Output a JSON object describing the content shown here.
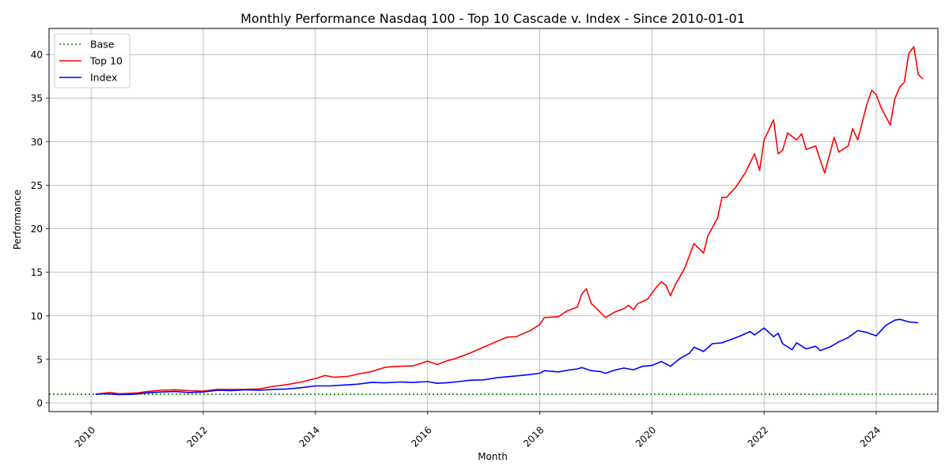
{
  "chart_data": {
    "type": "line",
    "title": "Monthly Performance Nasdaq 100 - Top 10 Cascade v. Index - Since 2010-01-01",
    "xlabel": "Month",
    "ylabel": "Performance",
    "xlim": [
      2009.25,
      2025.1
    ],
    "ylim": [
      -1,
      43
    ],
    "x_ticks": [
      "2010",
      "2012",
      "2014",
      "2016",
      "2018",
      "2020",
      "2022",
      "2024"
    ],
    "x_tick_values": [
      2010,
      2012,
      2014,
      2016,
      2018,
      2020,
      2022,
      2024
    ],
    "y_ticks": [
      0,
      5,
      10,
      15,
      20,
      25,
      30,
      35,
      40
    ],
    "grid": true,
    "legend_position": "top-left",
    "base": {
      "name": "Base",
      "value": 1,
      "color": "#008000",
      "style": "dotted"
    },
    "series": [
      {
        "name": "Top 10",
        "color": "#ff0000",
        "points": [
          [
            2010.08,
            1.0
          ],
          [
            2010.25,
            1.12
          ],
          [
            2010.33,
            1.2
          ],
          [
            2010.5,
            1.05
          ],
          [
            2010.67,
            1.1
          ],
          [
            2010.83,
            1.15
          ],
          [
            2011.0,
            1.3
          ],
          [
            2011.25,
            1.45
          ],
          [
            2011.5,
            1.5
          ],
          [
            2011.75,
            1.4
          ],
          [
            2012.0,
            1.35
          ],
          [
            2012.25,
            1.55
          ],
          [
            2012.5,
            1.55
          ],
          [
            2012.75,
            1.55
          ],
          [
            2013.0,
            1.6
          ],
          [
            2013.25,
            1.9
          ],
          [
            2013.5,
            2.1
          ],
          [
            2013.75,
            2.4
          ],
          [
            2014.0,
            2.8
          ],
          [
            2014.17,
            3.15
          ],
          [
            2014.33,
            2.95
          ],
          [
            2014.58,
            3.05
          ],
          [
            2014.75,
            3.3
          ],
          [
            2015.0,
            3.6
          ],
          [
            2015.25,
            4.1
          ],
          [
            2015.5,
            4.2
          ],
          [
            2015.75,
            4.25
          ],
          [
            2016.0,
            4.8
          ],
          [
            2016.17,
            4.4
          ],
          [
            2016.33,
            4.8
          ],
          [
            2016.5,
            5.1
          ],
          [
            2016.75,
            5.7
          ],
          [
            2017.0,
            6.4
          ],
          [
            2017.25,
            7.1
          ],
          [
            2017.42,
            7.55
          ],
          [
            2017.58,
            7.6
          ],
          [
            2017.83,
            8.3
          ],
          [
            2018.0,
            9.0
          ],
          [
            2018.08,
            9.8
          ],
          [
            2018.33,
            9.9
          ],
          [
            2018.5,
            10.6
          ],
          [
            2018.67,
            11.0
          ],
          [
            2018.75,
            12.5
          ],
          [
            2018.83,
            13.1
          ],
          [
            2018.92,
            11.4
          ],
          [
            2019.08,
            10.4
          ],
          [
            2019.17,
            9.8
          ],
          [
            2019.33,
            10.4
          ],
          [
            2019.5,
            10.8
          ],
          [
            2019.58,
            11.2
          ],
          [
            2019.67,
            10.7
          ],
          [
            2019.75,
            11.4
          ],
          [
            2019.92,
            11.9
          ],
          [
            2020.08,
            13.3
          ],
          [
            2020.17,
            13.9
          ],
          [
            2020.25,
            13.5
          ],
          [
            2020.33,
            12.3
          ],
          [
            2020.42,
            13.6
          ],
          [
            2020.58,
            15.4
          ],
          [
            2020.75,
            18.3
          ],
          [
            2020.92,
            17.2
          ],
          [
            2021.0,
            19.2
          ],
          [
            2021.17,
            21.2
          ],
          [
            2021.25,
            23.6
          ],
          [
            2021.33,
            23.6
          ],
          [
            2021.5,
            24.8
          ],
          [
            2021.67,
            26.5
          ],
          [
            2021.83,
            28.6
          ],
          [
            2021.92,
            26.7
          ],
          [
            2022.0,
            30.2
          ],
          [
            2022.17,
            32.5
          ],
          [
            2022.25,
            28.6
          ],
          [
            2022.33,
            29.0
          ],
          [
            2022.42,
            31.0
          ],
          [
            2022.58,
            30.2
          ],
          [
            2022.67,
            30.9
          ],
          [
            2022.75,
            29.1
          ],
          [
            2022.92,
            29.5
          ],
          [
            2023.0,
            27.9
          ],
          [
            2023.08,
            26.4
          ],
          [
            2023.25,
            30.5
          ],
          [
            2023.33,
            28.8
          ],
          [
            2023.5,
            29.5
          ],
          [
            2023.58,
            31.5
          ],
          [
            2023.67,
            30.2
          ],
          [
            2023.83,
            34.2
          ],
          [
            2023.92,
            35.9
          ],
          [
            2024.0,
            35.4
          ],
          [
            2024.08,
            34.0
          ],
          [
            2024.25,
            31.9
          ],
          [
            2024.33,
            34.9
          ],
          [
            2024.42,
            36.3
          ],
          [
            2024.5,
            36.8
          ],
          [
            2024.58,
            40.1
          ],
          [
            2024.67,
            40.9
          ],
          [
            2024.75,
            37.7
          ],
          [
            2024.83,
            37.2
          ]
        ]
      },
      {
        "name": "Index",
        "color": "#0000ff",
        "points": [
          [
            2010.08,
            1.0
          ],
          [
            2010.25,
            1.05
          ],
          [
            2010.5,
            0.95
          ],
          [
            2010.75,
            0.98
          ],
          [
            2011.0,
            1.15
          ],
          [
            2011.25,
            1.25
          ],
          [
            2011.5,
            1.3
          ],
          [
            2011.75,
            1.2
          ],
          [
            2012.0,
            1.25
          ],
          [
            2012.25,
            1.45
          ],
          [
            2012.5,
            1.4
          ],
          [
            2012.75,
            1.5
          ],
          [
            2013.0,
            1.45
          ],
          [
            2013.25,
            1.55
          ],
          [
            2013.5,
            1.6
          ],
          [
            2013.75,
            1.75
          ],
          [
            2014.0,
            1.95
          ],
          [
            2014.25,
            1.95
          ],
          [
            2014.5,
            2.05
          ],
          [
            2014.75,
            2.15
          ],
          [
            2015.0,
            2.35
          ],
          [
            2015.25,
            2.3
          ],
          [
            2015.5,
            2.4
          ],
          [
            2015.75,
            2.35
          ],
          [
            2016.0,
            2.45
          ],
          [
            2016.17,
            2.25
          ],
          [
            2016.33,
            2.3
          ],
          [
            2016.5,
            2.4
          ],
          [
            2016.75,
            2.6
          ],
          [
            2017.0,
            2.65
          ],
          [
            2017.25,
            2.9
          ],
          [
            2017.5,
            3.05
          ],
          [
            2017.75,
            3.2
          ],
          [
            2018.0,
            3.4
          ],
          [
            2018.08,
            3.7
          ],
          [
            2018.33,
            3.55
          ],
          [
            2018.5,
            3.75
          ],
          [
            2018.67,
            3.9
          ],
          [
            2018.75,
            4.05
          ],
          [
            2018.92,
            3.7
          ],
          [
            2019.08,
            3.6
          ],
          [
            2019.17,
            3.4
          ],
          [
            2019.33,
            3.75
          ],
          [
            2019.5,
            4.0
          ],
          [
            2019.67,
            3.8
          ],
          [
            2019.83,
            4.2
          ],
          [
            2020.0,
            4.3
          ],
          [
            2020.17,
            4.75
          ],
          [
            2020.33,
            4.2
          ],
          [
            2020.5,
            5.1
          ],
          [
            2020.67,
            5.7
          ],
          [
            2020.75,
            6.4
          ],
          [
            2020.92,
            5.9
          ],
          [
            2021.08,
            6.8
          ],
          [
            2021.25,
            6.9
          ],
          [
            2021.42,
            7.3
          ],
          [
            2021.58,
            7.7
          ],
          [
            2021.75,
            8.2
          ],
          [
            2021.83,
            7.8
          ],
          [
            2022.0,
            8.6
          ],
          [
            2022.17,
            7.6
          ],
          [
            2022.25,
            8.0
          ],
          [
            2022.33,
            6.8
          ],
          [
            2022.5,
            6.1
          ],
          [
            2022.58,
            6.9
          ],
          [
            2022.75,
            6.2
          ],
          [
            2022.92,
            6.5
          ],
          [
            2023.0,
            6.0
          ],
          [
            2023.17,
            6.4
          ],
          [
            2023.33,
            7.0
          ],
          [
            2023.5,
            7.5
          ],
          [
            2023.67,
            8.3
          ],
          [
            2023.83,
            8.1
          ],
          [
            2024.0,
            7.7
          ],
          [
            2024.17,
            8.9
          ],
          [
            2024.33,
            9.5
          ],
          [
            2024.42,
            9.6
          ],
          [
            2024.58,
            9.3
          ],
          [
            2024.75,
            9.2
          ]
        ]
      }
    ]
  }
}
